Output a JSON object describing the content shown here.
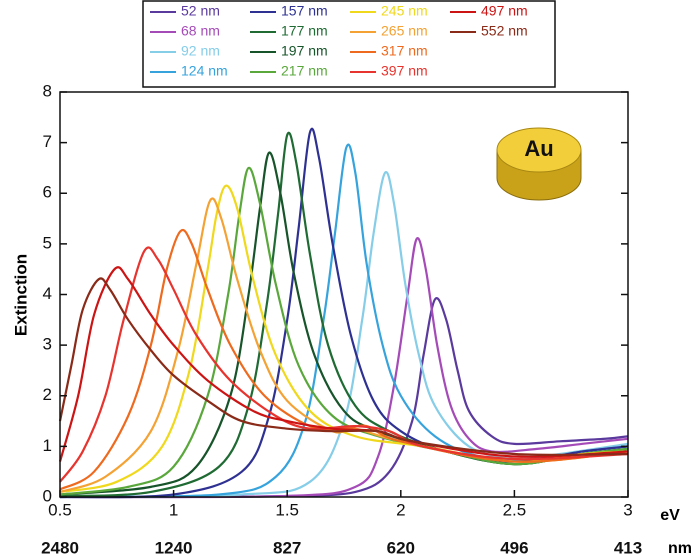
{
  "chart_data": {
    "type": "line",
    "xlabel": "eV",
    "x2label": "nm",
    "ylabel": "Extinction",
    "annotation": "Au",
    "xlim": [
      0.5,
      3
    ],
    "ylim": [
      0,
      8
    ],
    "xticks": [
      0.5,
      1,
      1.5,
      2,
      2.5,
      3
    ],
    "x2ticks": [
      {
        "value": 0.5,
        "label": "2480"
      },
      {
        "value": 1,
        "label": "1240"
      },
      {
        "value": 1.5,
        "label": "827"
      },
      {
        "value": 2,
        "label": "620"
      },
      {
        "value": 2.5,
        "label": "496"
      },
      {
        "value": 3,
        "label": "413"
      }
    ],
    "yticks": [
      0,
      1,
      2,
      3,
      4,
      5,
      6,
      7,
      8
    ],
    "series": [
      {
        "name": "52 nm",
        "color": "#5b3a9e",
        "x": [
          0.5,
          1.0,
          1.5,
          1.8,
          1.95,
          2.05,
          2.1,
          2.15,
          2.2,
          2.25,
          2.3,
          2.4,
          2.5,
          2.7,
          2.9,
          3.0
        ],
        "values": [
          0,
          0,
          0.02,
          0.1,
          0.5,
          1.5,
          2.8,
          3.9,
          3.5,
          2.5,
          1.7,
          1.2,
          1.05,
          1.1,
          1.15,
          1.2
        ]
      },
      {
        "name": "68 nm",
        "color": "#a54bb8",
        "x": [
          0.5,
          1.5,
          1.8,
          1.9,
          1.97,
          2.03,
          2.07,
          2.11,
          2.16,
          2.22,
          2.3,
          2.4,
          2.6,
          2.8,
          3.0
        ],
        "values": [
          0,
          0.02,
          0.2,
          0.8,
          2.2,
          4.0,
          5.1,
          4.5,
          3.0,
          1.8,
          1.15,
          0.9,
          0.95,
          1.05,
          1.15
        ]
      },
      {
        "name": "92 nm",
        "color": "#86cde8",
        "x": [
          0.5,
          1.3,
          1.6,
          1.75,
          1.83,
          1.88,
          1.93,
          1.97,
          2.02,
          2.08,
          2.15,
          2.3,
          2.5,
          2.7,
          3.0
        ],
        "values": [
          0,
          0.05,
          0.3,
          1.5,
          3.5,
          5.2,
          6.4,
          5.8,
          4.2,
          2.8,
          1.8,
          1.0,
          0.75,
          0.85,
          1.05
        ]
      },
      {
        "name": "124 nm",
        "color": "#36a3dd",
        "x": [
          0.5,
          1.2,
          1.45,
          1.58,
          1.66,
          1.71,
          1.76,
          1.8,
          1.85,
          1.92,
          2.0,
          2.15,
          2.35,
          2.6,
          2.8,
          3.0
        ],
        "values": [
          0,
          0.05,
          0.4,
          1.5,
          3.5,
          5.2,
          6.9,
          6.4,
          4.6,
          3.0,
          2.0,
          1.2,
          0.8,
          0.75,
          0.9,
          1.0
        ]
      },
      {
        "name": "157 nm",
        "color": "#2e3192",
        "x": [
          0.5,
          1.0,
          1.3,
          1.42,
          1.5,
          1.55,
          1.6,
          1.64,
          1.7,
          1.78,
          1.88,
          2.0,
          2.2,
          2.5,
          2.8,
          3.0
        ],
        "values": [
          0,
          0.05,
          0.5,
          1.6,
          3.5,
          5.3,
          7.2,
          6.7,
          5.0,
          3.2,
          1.9,
          1.3,
          0.9,
          0.7,
          0.9,
          1.0
        ]
      },
      {
        "name": "177 nm",
        "color": "#1f6b33",
        "x": [
          0.5,
          0.9,
          1.2,
          1.33,
          1.41,
          1.46,
          1.5,
          1.54,
          1.6,
          1.68,
          1.8,
          1.95,
          2.2,
          2.5,
          2.8,
          3.0
        ],
        "values": [
          0.02,
          0.1,
          0.6,
          1.8,
          3.8,
          5.6,
          7.15,
          6.6,
          4.8,
          3.0,
          1.8,
          1.3,
          0.9,
          0.65,
          0.85,
          0.95
        ]
      },
      {
        "name": "197 nm",
        "color": "#17542a",
        "x": [
          0.5,
          0.9,
          1.1,
          1.25,
          1.33,
          1.38,
          1.42,
          1.47,
          1.53,
          1.62,
          1.75,
          1.9,
          2.2,
          2.5,
          2.8,
          3.0
        ],
        "values": [
          0.05,
          0.2,
          0.6,
          2.0,
          4.0,
          5.7,
          6.8,
          6.0,
          4.4,
          2.8,
          1.7,
          1.3,
          0.9,
          0.65,
          0.85,
          0.95
        ]
      },
      {
        "name": "217 nm",
        "color": "#5aa83c",
        "x": [
          0.5,
          0.8,
          1.0,
          1.15,
          1.24,
          1.29,
          1.33,
          1.38,
          1.45,
          1.55,
          1.7,
          1.9,
          2.2,
          2.5,
          2.8,
          3.0
        ],
        "values": [
          0.05,
          0.2,
          0.6,
          2.0,
          4.0,
          5.6,
          6.5,
          5.8,
          4.2,
          2.6,
          1.6,
          1.2,
          0.9,
          0.65,
          0.85,
          0.95
        ]
      },
      {
        "name": "245 nm",
        "color": "#f0d81c",
        "x": [
          0.5,
          0.75,
          0.95,
          1.07,
          1.15,
          1.19,
          1.23,
          1.28,
          1.35,
          1.45,
          1.6,
          1.8,
          2.1,
          2.5,
          2.8,
          3.0
        ],
        "values": [
          0.1,
          0.3,
          1.0,
          2.5,
          4.5,
          5.6,
          6.15,
          5.7,
          4.3,
          2.8,
          1.7,
          1.2,
          1.0,
          0.7,
          0.85,
          0.9
        ]
      },
      {
        "name": "265 nm",
        "color": "#f4a233",
        "x": [
          0.5,
          0.7,
          0.9,
          1.02,
          1.1,
          1.16,
          1.21,
          1.28,
          1.38,
          1.5,
          1.7,
          1.8,
          2.0,
          2.5,
          3.0
        ],
        "values": [
          0.1,
          0.4,
          1.3,
          2.9,
          4.6,
          5.85,
          5.5,
          4.3,
          2.9,
          1.9,
          1.3,
          1.35,
          1.1,
          0.7,
          0.9
        ]
      },
      {
        "name": "317 nm",
        "color": "#ee6a1f",
        "x": [
          0.5,
          0.65,
          0.8,
          0.9,
          0.97,
          1.03,
          1.08,
          1.15,
          1.25,
          1.4,
          1.6,
          1.75,
          1.85,
          2.0,
          2.5,
          3.0
        ],
        "values": [
          0.15,
          0.5,
          1.6,
          3.0,
          4.5,
          5.25,
          5.0,
          4.1,
          3.0,
          2.0,
          1.4,
          1.35,
          1.4,
          1.1,
          0.7,
          0.9
        ]
      },
      {
        "name": "397 nm",
        "color": "#e8342e",
        "x": [
          0.5,
          0.6,
          0.7,
          0.78,
          0.87,
          0.93,
          1.0,
          1.1,
          1.25,
          1.45,
          1.6,
          1.8,
          1.95,
          2.1,
          2.5,
          3.0
        ],
        "values": [
          0.3,
          0.9,
          2.0,
          3.5,
          4.85,
          4.7,
          4.1,
          3.2,
          2.3,
          1.6,
          1.35,
          1.4,
          1.3,
          1.0,
          0.75,
          0.85
        ]
      },
      {
        "name": "497 nm",
        "color": "#cc1414",
        "x": [
          0.5,
          0.58,
          0.65,
          0.74,
          0.8,
          0.9,
          1.0,
          1.15,
          1.35,
          1.5,
          1.7,
          1.9,
          2.05,
          2.5,
          3.0
        ],
        "values": [
          0.7,
          2.0,
          3.6,
          4.5,
          4.3,
          3.6,
          3.0,
          2.3,
          1.7,
          1.5,
          1.35,
          1.3,
          1.1,
          0.8,
          0.9
        ]
      },
      {
        "name": "552 nm",
        "color": "#8a2a18",
        "x": [
          0.5,
          0.55,
          0.6,
          0.67,
          0.72,
          0.8,
          0.9,
          1.0,
          1.15,
          1.3,
          1.5,
          1.7,
          1.9,
          2.05,
          2.5,
          3.0
        ],
        "values": [
          1.5,
          2.6,
          3.7,
          4.3,
          4.1,
          3.5,
          2.9,
          2.4,
          1.9,
          1.5,
          1.35,
          1.3,
          1.3,
          1.1,
          0.85,
          0.85
        ]
      }
    ]
  }
}
